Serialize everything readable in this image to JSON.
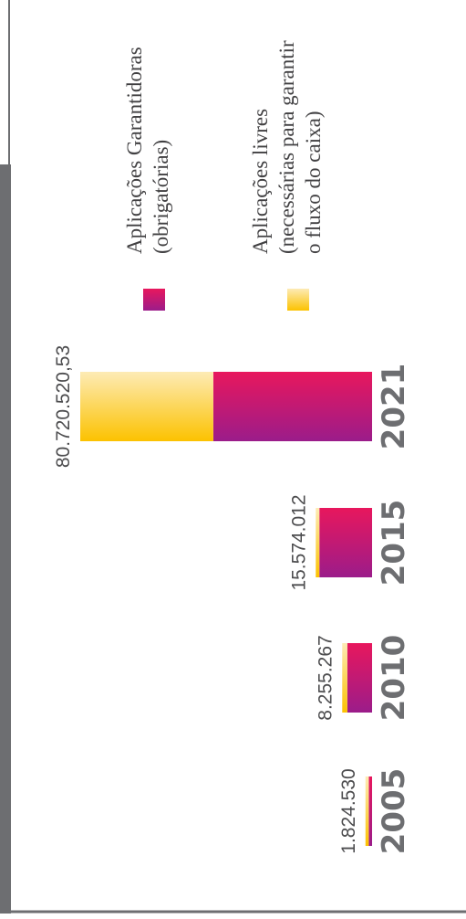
{
  "chart_data": {
    "type": "stacked-bar",
    "categories": [
      "2005",
      "2010",
      "2015",
      "2021"
    ],
    "totals": [
      1824530,
      8255267,
      15574012,
      80720520.53
    ],
    "total_labels": [
      "1.824.530",
      "8.255.267",
      "15.574.012",
      "80.720.520,53"
    ],
    "series": [
      {
        "name": "Aplicações Garantidoras",
        "name_lines": [
          "(obrigatórias)"
        ],
        "color": "#e8175d",
        "color2": "#9b1c8a",
        "values": [
          912265,
          6855267,
          14574012,
          43920520.53
        ]
      },
      {
        "name": "Aplicações livres",
        "name_lines": [
          "(necessárias para garantir",
          "o fluxo do caixa)"
        ],
        "color": "#fdebb5",
        "color2": "#fcc200",
        "values": [
          912265,
          1400000,
          1000000,
          36800000
        ]
      }
    ]
  }
}
